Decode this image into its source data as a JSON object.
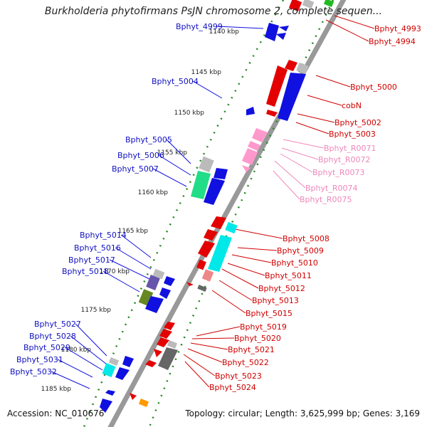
{
  "title": "Burkholderia phytofirmans PsJN chromosome 2, complete sequen...",
  "accession": "Accession: NC_010676",
  "topology": "Topology: circular; Length: 3,625,999 bp; Genes: 3,169",
  "ruler": [
    {
      "label": "1140 kbp"
    },
    {
      "label": "1145 kbp"
    },
    {
      "label": "1150 kbp"
    },
    {
      "label": "1155 kbp"
    },
    {
      "label": "1160 kbp"
    },
    {
      "label": "1165 kbp"
    },
    {
      "label": "1170 kbp"
    },
    {
      "label": "1175 kbp"
    },
    {
      "label": "1180 kbp"
    },
    {
      "label": "1185 kbp"
    }
  ],
  "left_labels": [
    "Bphyt_4999",
    "Bphyt_5004",
    "Bphyt_5005",
    "Bphyt_5006",
    "Bphyt_5007",
    "Bphyt_5014",
    "Bphyt_5016",
    "Bphyt_5017",
    "Bphyt_5018",
    "Bphyt_5027",
    "Bphyt_5028",
    "Bphyt_5029",
    "Bphyt_5031",
    "Bphyt_5032"
  ],
  "right_labels": [
    "Bphyt_4993",
    "Bphyt_4994",
    "Bphyt_5000",
    "cobN",
    "Bphyt_5002",
    "Bphyt_5003",
    "Bphyt_R0071",
    "Bphyt_R0072",
    "Bphyt_R0073",
    "Bphyt_R0074",
    "Bphyt_R0075",
    "Bphyt_5008",
    "Bphyt_5009",
    "Bphyt_5010",
    "Bphyt_5011",
    "Bphyt_5012",
    "Bphyt_5013",
    "Bphyt_5015",
    "Bphyt_5019",
    "Bphyt_5020",
    "Bphyt_5021",
    "Bphyt_5022",
    "Bphyt_5023",
    "Bphyt_5024"
  ],
  "colors": {
    "forward": "#e30000",
    "reverse": "#1010e0",
    "rna": "#ff99cc",
    "cyan": "#00e8e8",
    "green": "#22dd88",
    "grey": "#bbbbbb",
    "dark_grey": "#666666",
    "olive": "#668822",
    "purple": "#6655aa",
    "orange": "#ff9900",
    "backbone": "#999999",
    "tick": "#228822"
  }
}
